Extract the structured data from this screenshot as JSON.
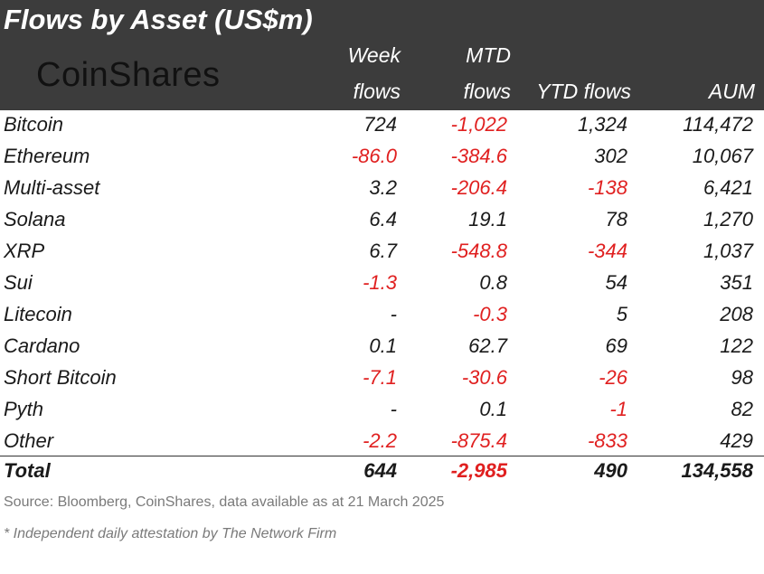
{
  "header": {
    "title": "Flows by Asset (US$m)",
    "logo": "CoinShares",
    "columns": [
      {
        "line1": "Week",
        "line2": "flows"
      },
      {
        "line1": "MTD",
        "line2": "flows"
      },
      {
        "line1": "",
        "line2": "YTD flows"
      },
      {
        "line1": "",
        "line2": "AUM"
      }
    ]
  },
  "colors": {
    "header_bg": "#3c3c3c",
    "negative": "#e02020",
    "text": "#1a1a1a",
    "muted": "#7a7a7a"
  },
  "chart_data": {
    "type": "table",
    "title": "Flows by Asset (US$m)",
    "columns": [
      "Week flows",
      "MTD flows",
      "YTD flows",
      "AUM"
    ],
    "rows": [
      {
        "asset": "Bitcoin",
        "week": "724",
        "mtd": "-1,022",
        "ytd": "1,324",
        "aum": "114,472"
      },
      {
        "asset": "Ethereum",
        "week": "-86.0",
        "mtd": "-384.6",
        "ytd": "302",
        "aum": "10,067"
      },
      {
        "asset": "Multi-asset",
        "week": "3.2",
        "mtd": "-206.4",
        "ytd": "-138",
        "aum": "6,421"
      },
      {
        "asset": "Solana",
        "week": "6.4",
        "mtd": "19.1",
        "ytd": "78",
        "aum": "1,270"
      },
      {
        "asset": "XRP",
        "week": "6.7",
        "mtd": "-548.8",
        "ytd": "-344",
        "aum": "1,037"
      },
      {
        "asset": "Sui",
        "week": "-1.3",
        "mtd": "0.8",
        "ytd": "54",
        "aum": "351"
      },
      {
        "asset": "Litecoin",
        "week": "-",
        "mtd": "-0.3",
        "ytd": "5",
        "aum": "208"
      },
      {
        "asset": "Cardano",
        "week": "0.1",
        "mtd": "62.7",
        "ytd": "69",
        "aum": "122"
      },
      {
        "asset": "Short Bitcoin",
        "week": "-7.1",
        "mtd": "-30.6",
        "ytd": "-26",
        "aum": "98"
      },
      {
        "asset": "Pyth",
        "week": "-",
        "mtd": "0.1",
        "ytd": "-1",
        "aum": "82"
      },
      {
        "asset": "Other",
        "week": "-2.2",
        "mtd": "-875.4",
        "ytd": "-833",
        "aum": "429"
      }
    ],
    "total": {
      "asset": "Total",
      "week": "644",
      "mtd": "-2,985",
      "ytd": "490",
      "aum": "134,558"
    }
  },
  "source": "Source: Bloomberg, CoinShares, data available as at 21 March 2025",
  "footnote": "* Independent daily attestation by The Network Firm"
}
